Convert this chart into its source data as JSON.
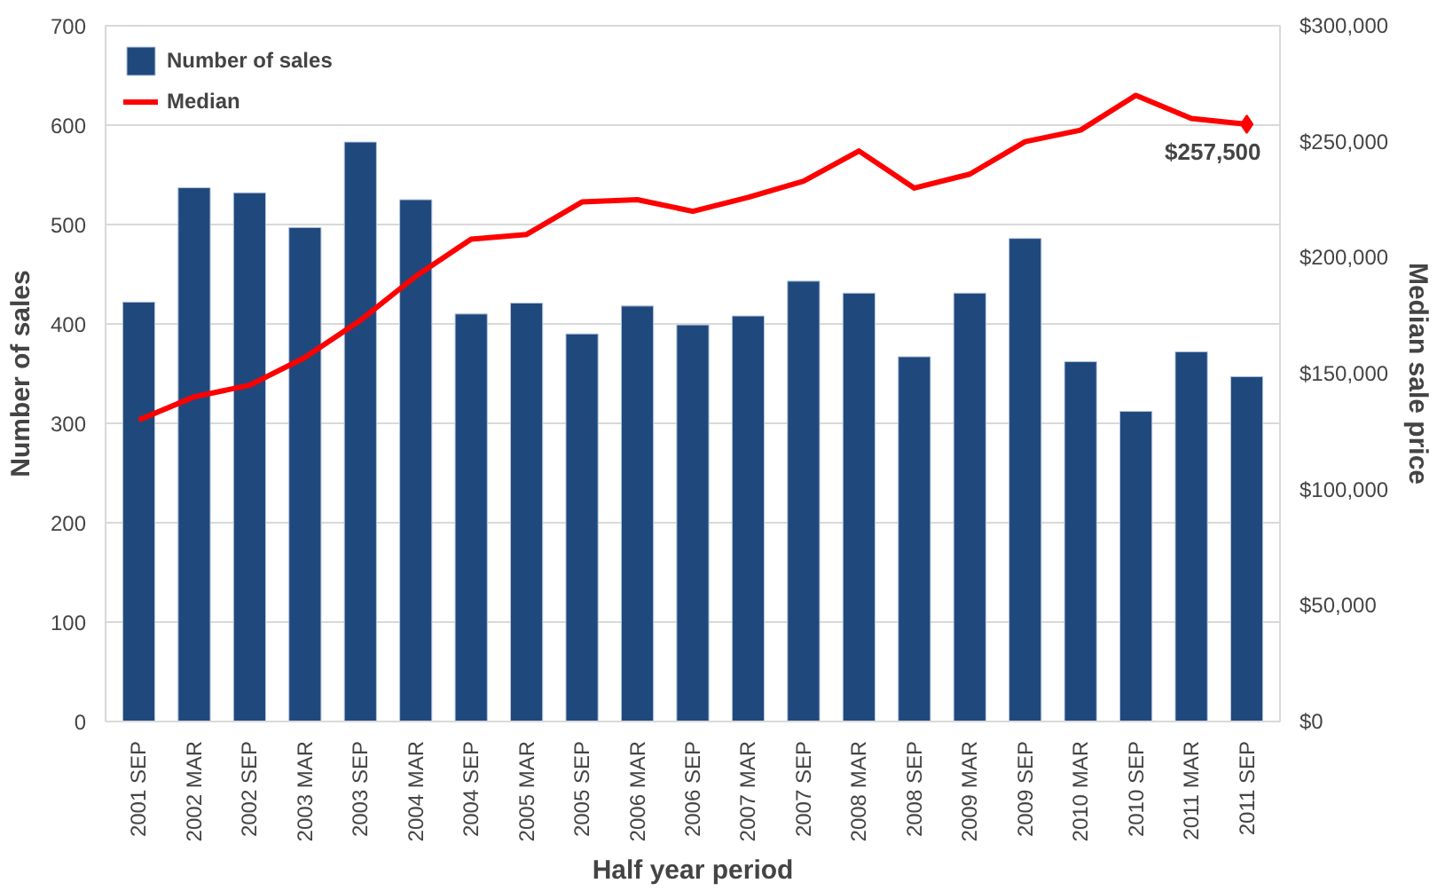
{
  "chart_data": {
    "type": "bar",
    "categories": [
      "2001 SEP",
      "2002 MAR",
      "2002 SEP",
      "2003 MAR",
      "2003 SEP",
      "2004 MAR",
      "2004 SEP",
      "2005 MAR",
      "2005 SEP",
      "2006 MAR",
      "2006 SEP",
      "2007 MAR",
      "2007 SEP",
      "2008 MAR",
      "2008 SEP",
      "2009 MAR",
      "2009 SEP",
      "2010 MAR",
      "2010 SEP",
      "2011 MAR",
      "2011 SEP"
    ],
    "series": [
      {
        "name": "Number of sales",
        "color": "#1f497d",
        "values": [
          422,
          537,
          532,
          497,
          583,
          525,
          410,
          421,
          390,
          418,
          399,
          408,
          443,
          431,
          367,
          431,
          486,
          362,
          312,
          372,
          347
        ]
      },
      {
        "name": "Median",
        "type": "line",
        "axis": "y2",
        "color": "#ff0000",
        "values": [
          130000,
          140000,
          145000,
          157000,
          173000,
          192000,
          208000,
          210000,
          224000,
          225000,
          220000,
          226000,
          233000,
          246000,
          230000,
          236000,
          250000,
          255000,
          270000,
          260000,
          257500
        ]
      }
    ],
    "xlabel": "Half year period",
    "ylabel": "Number of sales",
    "y2label": "Median sale price",
    "ylim": [
      0,
      700
    ],
    "yticks": [
      0,
      100,
      200,
      300,
      400,
      500,
      600,
      700
    ],
    "y2lim": [
      0,
      300000
    ],
    "y2ticks": [
      {
        "value": 0,
        "label": "$0"
      },
      {
        "value": 50000,
        "label": "$50,000"
      },
      {
        "value": 100000,
        "label": "$100,000"
      },
      {
        "value": 150000,
        "label": "$150,000"
      },
      {
        "value": 200000,
        "label": "$200,000"
      },
      {
        "value": 250000,
        "label": "$250,000"
      },
      {
        "value": 300000,
        "label": "$300,000"
      }
    ],
    "annotations": [
      "$257,500"
    ],
    "grid": "y",
    "legend": "top left",
    "line_style": "solid"
  }
}
